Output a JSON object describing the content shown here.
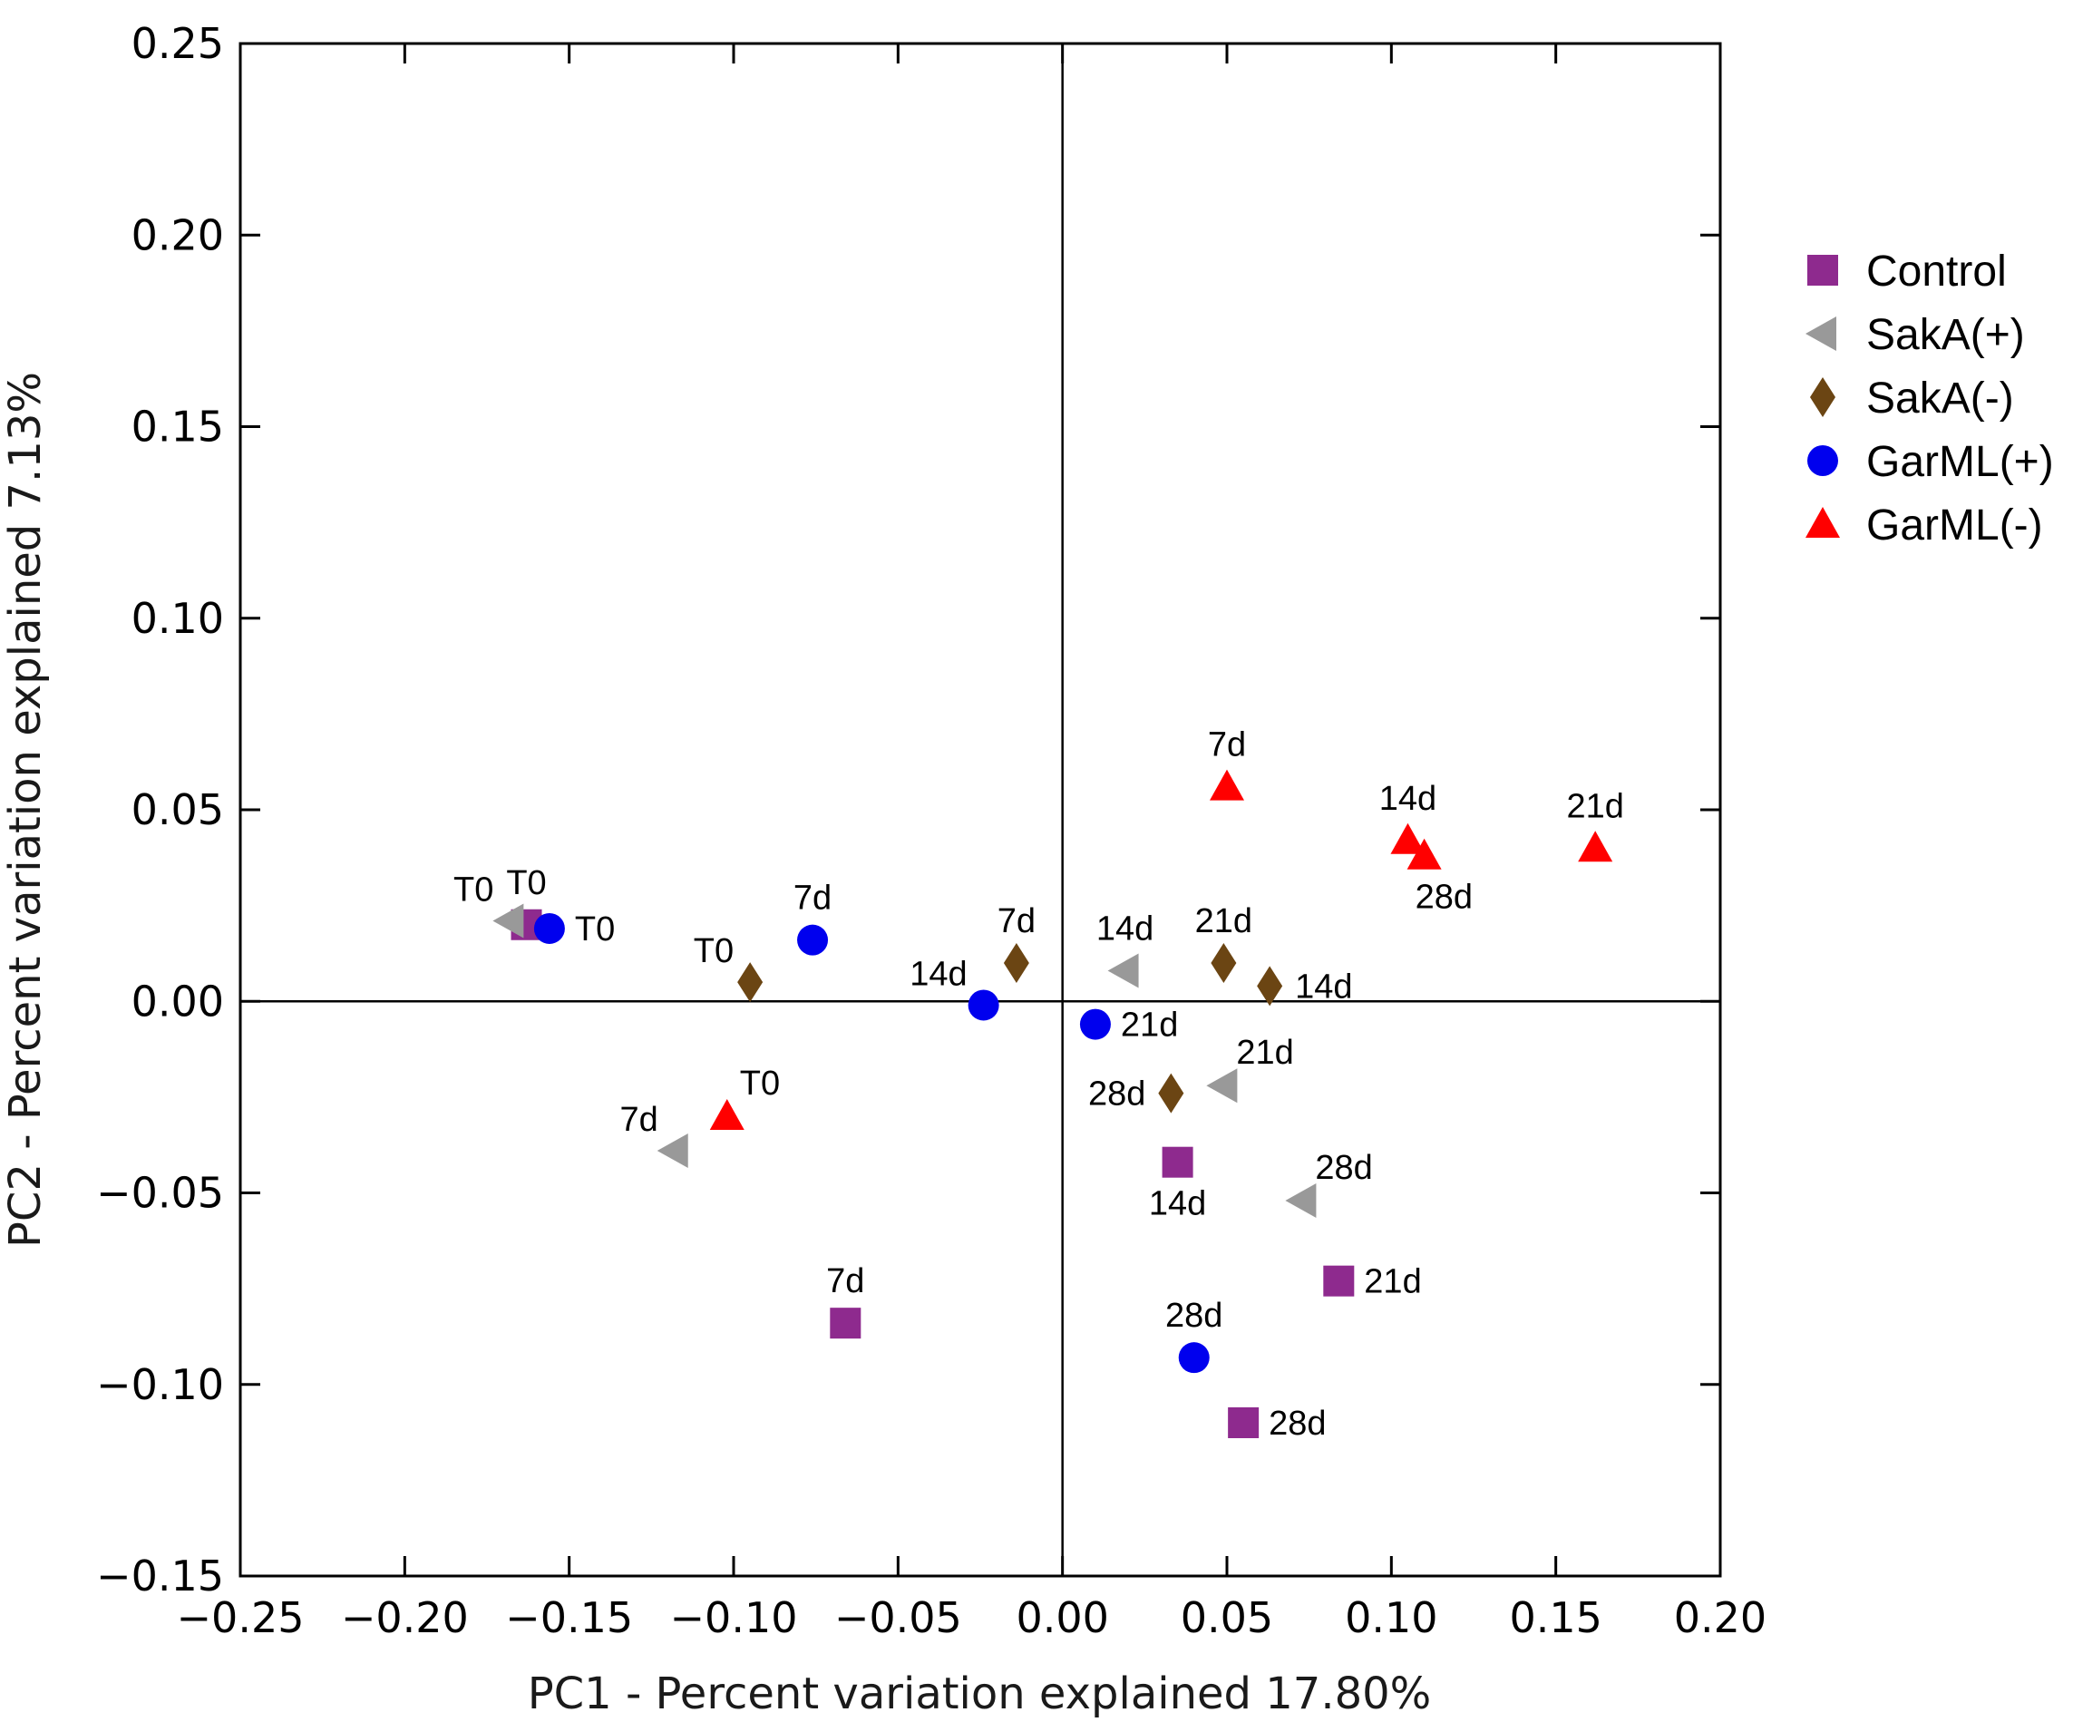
{
  "chart_data": {
    "type": "scatter",
    "title": "",
    "xlabel": "PC1 - Percent variation explained 17.80%",
    "ylabel": "PC2 - Percent variation explained 7.13%",
    "xlim": [
      -0.25,
      0.2
    ],
    "ylim": [
      -0.15,
      0.25
    ],
    "xticks": [
      "−0.25",
      "−0.20",
      "−0.15",
      "−0.10",
      "−0.05",
      "0.00",
      "0.05",
      "0.10",
      "0.15",
      "0.20"
    ],
    "xtick_values": [
      -0.25,
      -0.2,
      -0.15,
      -0.1,
      -0.05,
      0.0,
      0.05,
      0.1,
      0.15,
      0.2
    ],
    "yticks": [
      "−0.15",
      "−0.10",
      "−0.05",
      "0.00",
      "0.05",
      "0.10",
      "0.15",
      "0.20",
      "0.25"
    ],
    "ytick_values": [
      -0.15,
      -0.1,
      -0.05,
      0.0,
      0.05,
      0.1,
      0.15,
      0.2,
      0.25
    ],
    "legend_position": "right",
    "series": [
      {
        "name": "Control",
        "marker": "square",
        "color": "#8e2a8e",
        "points": [
          {
            "x": -0.163,
            "y": 0.02,
            "label": "T0",
            "anchor": "above"
          },
          {
            "x": -0.066,
            "y": -0.084,
            "label": "7d",
            "anchor": "above"
          },
          {
            "x": 0.035,
            "y": -0.042,
            "label": "14d",
            "anchor": "below"
          },
          {
            "x": 0.084,
            "y": -0.073,
            "label": "21d",
            "anchor": "right"
          },
          {
            "x": 0.055,
            "y": -0.11,
            "label": "28d",
            "anchor": "right"
          }
        ]
      },
      {
        "name": "SakA(+)",
        "marker": "triangle-left",
        "color": "#999999",
        "points": [
          {
            "x": -0.168,
            "y": 0.021,
            "label": "T0",
            "anchor": "left-above"
          },
          {
            "x": -0.118,
            "y": -0.039,
            "label": "7d",
            "anchor": "left-above"
          },
          {
            "x": 0.019,
            "y": 0.008,
            "label": "14d",
            "anchor": "above"
          },
          {
            "x": 0.049,
            "y": -0.022,
            "label": "21d",
            "anchor": "right-above"
          },
          {
            "x": 0.073,
            "y": -0.052,
            "label": "28d",
            "anchor": "right-above"
          }
        ]
      },
      {
        "name": "SakA(-)",
        "marker": "diamond",
        "color": "#6b4513",
        "points": [
          {
            "x": -0.095,
            "y": 0.005,
            "label": "T0",
            "anchor": "left-above"
          },
          {
            "x": -0.014,
            "y": 0.01,
            "label": "7d",
            "anchor": "above"
          },
          {
            "x": 0.063,
            "y": 0.004,
            "label": "14d",
            "anchor": "right"
          },
          {
            "x": 0.049,
            "y": 0.01,
            "label": "21d",
            "anchor": "above"
          },
          {
            "x": 0.033,
            "y": -0.024,
            "label": "28d",
            "anchor": "left"
          }
        ]
      },
      {
        "name": "GarML(+)",
        "marker": "circle",
        "color": "#0000ee",
        "points": [
          {
            "x": -0.156,
            "y": 0.019,
            "label": "T0",
            "anchor": "right"
          },
          {
            "x": -0.076,
            "y": 0.016,
            "label": "7d",
            "anchor": "above"
          },
          {
            "x": -0.024,
            "y": -0.001,
            "label": "14d",
            "anchor": "left-above"
          },
          {
            "x": 0.01,
            "y": -0.006,
            "label": "21d",
            "anchor": "right"
          },
          {
            "x": 0.04,
            "y": -0.093,
            "label": "28d",
            "anchor": "above"
          }
        ]
      },
      {
        "name": "GarML(-)",
        "marker": "triangle-up",
        "color": "#ff0000",
        "points": [
          {
            "x": -0.102,
            "y": -0.03,
            "label": "T0",
            "anchor": "right-above"
          },
          {
            "x": 0.05,
            "y": 0.056,
            "label": "7d",
            "anchor": "above"
          },
          {
            "x": 0.105,
            "y": 0.042,
            "label": "14d",
            "anchor": "above"
          },
          {
            "x": 0.162,
            "y": 0.04,
            "label": "21d",
            "anchor": "above"
          },
          {
            "x": 0.11,
            "y": 0.038,
            "label": "28d",
            "anchor": "below-right"
          }
        ]
      }
    ]
  }
}
